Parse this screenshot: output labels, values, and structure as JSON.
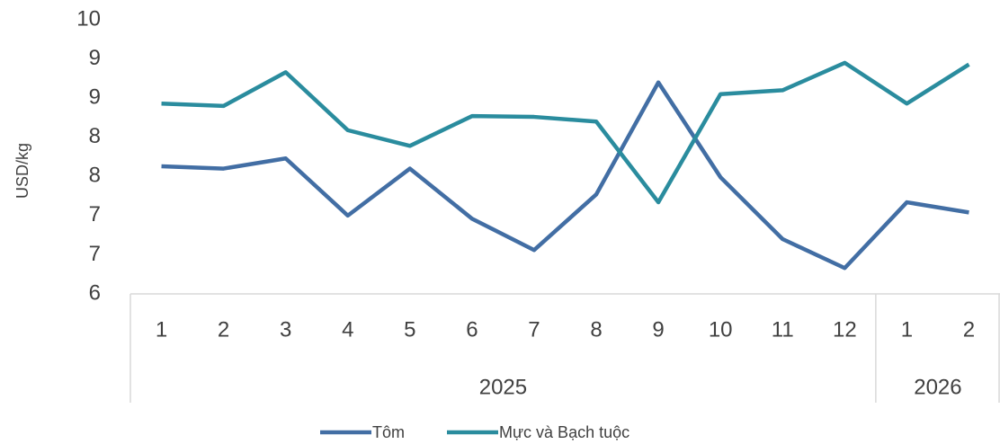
{
  "chart_data": {
    "type": "line",
    "y_label": "USD/kg",
    "categories": [
      "1",
      "2",
      "3",
      "4",
      "5",
      "6",
      "7",
      "8",
      "9",
      "10",
      "11",
      "12",
      "1",
      "2"
    ],
    "category_groups": [
      {
        "name": "2025",
        "count": 12
      },
      {
        "name": "2026",
        "count": 2
      }
    ],
    "series": [
      {
        "name": "Tôm",
        "color": "#426ea4",
        "values": [
          7.63,
          7.6,
          7.73,
          7.0,
          7.6,
          6.96,
          6.56,
          7.27,
          8.7,
          7.49,
          6.7,
          6.33,
          7.17,
          7.04
        ]
      },
      {
        "name": "Mực và Bạch tuộc",
        "color": "#2a8c9e",
        "values": [
          8.43,
          8.4,
          8.83,
          8.09,
          7.89,
          8.27,
          8.26,
          8.2,
          7.17,
          8.55,
          8.6,
          8.95,
          8.43,
          8.93
        ]
      }
    ],
    "ylim": [
      6,
      9.5
    ],
    "yticks": [
      {
        "value": 6,
        "label": "6"
      },
      {
        "value": 6.5,
        "label": "7"
      },
      {
        "value": 7,
        "label": "7"
      },
      {
        "value": 7.5,
        "label": "8"
      },
      {
        "value": 8,
        "label": "8"
      },
      {
        "value": 8.5,
        "label": "9"
      },
      {
        "value": 9,
        "label": "9"
      },
      {
        "value": 9.5,
        "label": "10"
      }
    ],
    "legend": "bottom",
    "grid": false
  }
}
